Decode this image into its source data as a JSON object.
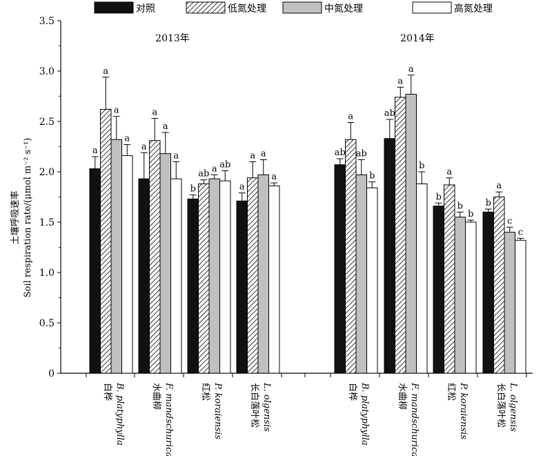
{
  "chart_data": {
    "type": "bar",
    "title": "",
    "ylabel_cn": "土壤呼吸速率",
    "ylabel_en": "Soil respiration rate/(μmol m⁻² s⁻¹)",
    "ylim": [
      0,
      3.5
    ],
    "yticks": [
      "0",
      "0.5",
      "1.0",
      "1.5",
      "2.0",
      "2.5",
      "3.0",
      "3.5"
    ],
    "legend_position": "top",
    "legend": [
      {
        "label": "对照",
        "style": "solid",
        "color": "#111111"
      },
      {
        "label": "低氮处理",
        "style": "hatch",
        "color": "#ffffff"
      },
      {
        "label": "中氮处理",
        "style": "solid",
        "color": "#c0c0c0"
      },
      {
        "label": "高氮处理",
        "style": "solid",
        "color": "#ffffff"
      }
    ],
    "panels": [
      {
        "year": "2013年",
        "groups": [
          {
            "cn": "白桦",
            "latin": "B. platyphylla",
            "values": [
              2.03,
              2.62,
              2.32,
              2.16
            ],
            "errors": [
              0.12,
              0.32,
              0.23,
              0.11
            ],
            "letters": [
              "a",
              "a",
              "a",
              "a"
            ]
          },
          {
            "cn": "水曲柳",
            "latin": "F. mandschurica",
            "values": [
              1.93,
              2.31,
              2.18,
              1.93
            ],
            "errors": [
              0.26,
              0.22,
              0.21,
              0.17
            ],
            "letters": [
              "a",
              "a",
              "a",
              "a"
            ]
          },
          {
            "cn": "红松",
            "latin": "P. koraiensis",
            "values": [
              1.73,
              1.88,
              1.93,
              1.91
            ],
            "errors": [
              0.04,
              0.04,
              0.04,
              0.1
            ],
            "letters": [
              "b",
              "ab",
              "a",
              "ab"
            ]
          },
          {
            "cn": "长白落叶松",
            "latin": "L. olgensis",
            "values": [
              1.71,
              1.94,
              1.97,
              1.86
            ],
            "errors": [
              0.08,
              0.16,
              0.15,
              0.03
            ],
            "letters": [
              "a",
              "a",
              "a",
              "a"
            ]
          }
        ]
      },
      {
        "year": "2014年",
        "groups": [
          {
            "cn": "白桦",
            "latin": "B. platyphylla",
            "values": [
              2.07,
              2.32,
              1.97,
              1.84
            ],
            "errors": [
              0.06,
              0.17,
              0.15,
              0.06
            ],
            "letters": [
              "ab",
              "a",
              "ab",
              "b"
            ]
          },
          {
            "cn": "水曲柳",
            "latin": "F. mandschurica",
            "values": [
              2.33,
              2.74,
              2.77,
              1.88
            ],
            "errors": [
              0.19,
              0.1,
              0.19,
              0.12
            ],
            "letters": [
              "ab",
              "a",
              "a",
              "b"
            ]
          },
          {
            "cn": "红松",
            "latin": "P. koraiensis",
            "values": [
              1.66,
              1.87,
              1.55,
              1.5
            ],
            "errors": [
              0.03,
              0.07,
              0.05,
              0.02
            ],
            "letters": [
              "b",
              "a",
              "b",
              "b"
            ]
          },
          {
            "cn": "长白落叶松",
            "latin": "L. olgensis",
            "values": [
              1.6,
              1.75,
              1.4,
              1.32
            ],
            "errors": [
              0.03,
              0.05,
              0.05,
              0.02
            ],
            "letters": [
              "b",
              "a",
              "c",
              "c"
            ]
          }
        ]
      }
    ]
  }
}
